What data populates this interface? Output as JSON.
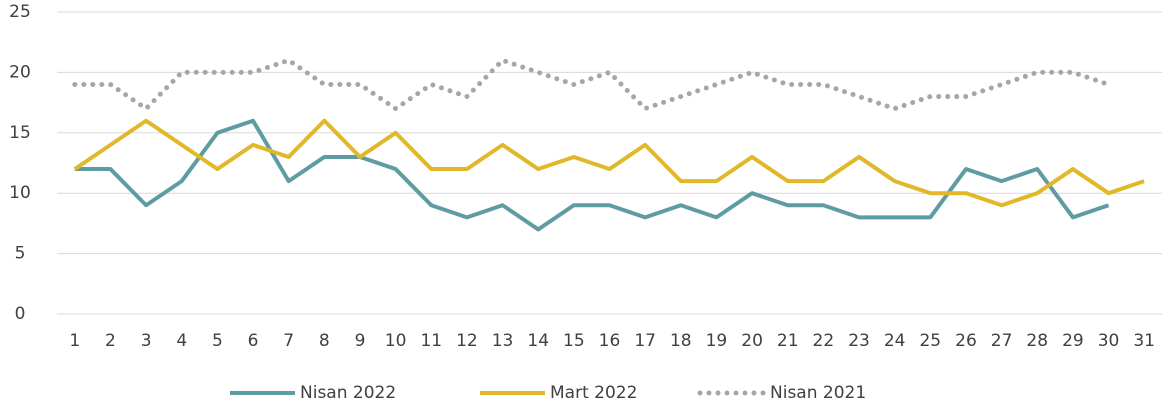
{
  "chart_data": {
    "type": "line",
    "categories": [
      "1",
      "2",
      "3",
      "4",
      "5",
      "6",
      "7",
      "8",
      "9",
      "10",
      "11",
      "12",
      "13",
      "14",
      "15",
      "16",
      "17",
      "18",
      "19",
      "20",
      "21",
      "22",
      "23",
      "24",
      "25",
      "26",
      "27",
      "28",
      "29",
      "30",
      "31"
    ],
    "series": [
      {
        "name": "Nisan 2022",
        "color": "#5f9ca1",
        "dash": "solid",
        "values": [
          12,
          12,
          9,
          11,
          15,
          16,
          11,
          13,
          13,
          12,
          9,
          8,
          9,
          7,
          9,
          9,
          8,
          9,
          8,
          10,
          9,
          9,
          8,
          8,
          8,
          12,
          11,
          12,
          8,
          9,
          null
        ]
      },
      {
        "name": "Mart 2022",
        "color": "#e0b829",
        "dash": "solid",
        "values": [
          12,
          14,
          16,
          14,
          12,
          14,
          13,
          16,
          13,
          15,
          12,
          12,
          14,
          12,
          13,
          12,
          14,
          11,
          11,
          13,
          11,
          11,
          13,
          11,
          10,
          10,
          9,
          10,
          12,
          10,
          11
        ]
      },
      {
        "name": "Nisan 2021",
        "color": "#a6a6a6",
        "dash": "dotted",
        "values": [
          19,
          19,
          17,
          20,
          20,
          20,
          21,
          19,
          19,
          17,
          19,
          18,
          21,
          20,
          19,
          20,
          17,
          18,
          19,
          20,
          19,
          19,
          18,
          17,
          18,
          18,
          19,
          20,
          20,
          19,
          null
        ]
      }
    ],
    "ylim": [
      0,
      25
    ],
    "yticks": [
      0,
      5,
      10,
      15,
      20,
      25
    ],
    "grid": true,
    "legend": "bottom"
  }
}
